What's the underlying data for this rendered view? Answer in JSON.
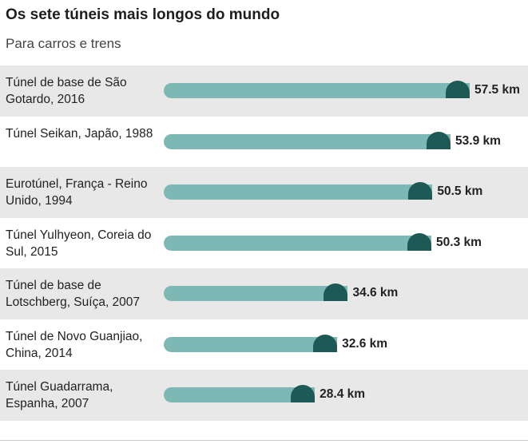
{
  "chart_data": {
    "type": "bar",
    "orientation": "horizontal",
    "title": "Os sete túneis mais longos do mundo",
    "subtitle": "Para carros e trens",
    "unit": "km",
    "xlim": [
      0,
      60
    ],
    "categories": [
      "Túnel de base de São Gotardo, 2016",
      "Túnel Seikan, Japão, 1988",
      "Eurotúnel, França - Reino Unido, 1994",
      "Túnel Yulhyeon, Coreia do Sul, 2015",
      "Túnel de base de Lotschberg, Suíça, 2007",
      "Túnel de Novo Guanjiao, China, 2014",
      "Túnel Guadarrama, Espanha, 2007"
    ],
    "values": [
      57.5,
      53.9,
      50.5,
      50.3,
      34.6,
      32.6,
      28.4
    ],
    "value_labels": [
      "57.5 km",
      "53.9 km",
      "50.5 km",
      "50.3 km",
      "34.6 km",
      "32.6 km",
      "28.4 km"
    ],
    "colors": {
      "bar": "#7eb8b5",
      "cap": "#1d5a56",
      "row_shade": "#e8e8e8"
    }
  }
}
